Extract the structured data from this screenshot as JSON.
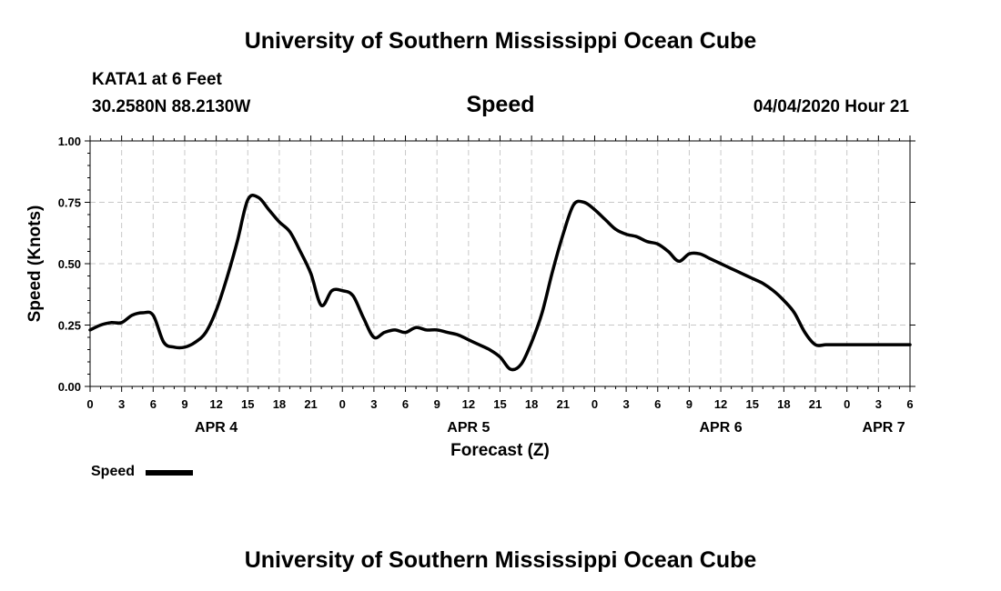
{
  "header": {
    "title": "University of Southern Mississippi Ocean Cube",
    "station": "KATA1 at 6 Feet",
    "coords": "30.2580N 88.2130W",
    "variable": "Speed",
    "timestamp": "04/04/2020 Hour 21"
  },
  "footer": {
    "title": "University of Southern Mississippi Ocean Cube"
  },
  "legend": {
    "label": "Speed",
    "color": "#000000"
  },
  "chart_data": {
    "type": "line",
    "title": "Speed",
    "xlabel": "Forecast (Z)",
    "ylabel": "Speed (Knots)",
    "ylim": [
      0,
      1.0
    ],
    "xlim": [
      0,
      78
    ],
    "yticks": [
      0.0,
      0.25,
      0.5,
      0.75,
      1.0
    ],
    "ytick_labels": [
      "0.00",
      "0.25",
      "0.50",
      "0.75",
      "1.00"
    ],
    "xticks": [
      0,
      3,
      6,
      9,
      12,
      15,
      18,
      21,
      24,
      27,
      30,
      33,
      36,
      39,
      42,
      45,
      48,
      51,
      54,
      57,
      60,
      63,
      66,
      69,
      72,
      75,
      78
    ],
    "xtick_labels": [
      "0",
      "3",
      "6",
      "9",
      "12",
      "15",
      "18",
      "21",
      "0",
      "3",
      "6",
      "9",
      "12",
      "15",
      "18",
      "21",
      "0",
      "3",
      "6",
      "9",
      "12",
      "15",
      "18",
      "21",
      "0",
      "3",
      "6"
    ],
    "date_labels": [
      {
        "text": "APR 4",
        "x": 12
      },
      {
        "text": "APR 5",
        "x": 36
      },
      {
        "text": "APR 6",
        "x": 60
      },
      {
        "text": "APR 7",
        "x": 75.5
      }
    ],
    "grid": true,
    "series": [
      {
        "name": "Speed",
        "x": [
          0,
          1,
          2,
          3,
          4,
          5,
          6,
          7,
          8,
          9,
          10,
          11,
          12,
          13,
          14,
          15,
          16,
          17,
          18,
          19,
          20,
          21,
          22,
          23,
          24,
          25,
          26,
          27,
          28,
          29,
          30,
          31,
          32,
          33,
          34,
          35,
          36,
          37,
          38,
          39,
          40,
          41,
          42,
          43,
          44,
          45,
          46,
          47,
          48,
          49,
          50,
          51,
          52,
          53,
          54,
          55,
          56,
          57,
          58,
          59,
          60,
          61,
          62,
          63,
          64,
          65,
          66,
          67,
          68,
          69,
          70,
          71,
          72,
          73,
          74,
          75,
          76,
          77,
          78
        ],
        "values": [
          0.23,
          0.25,
          0.26,
          0.26,
          0.29,
          0.3,
          0.29,
          0.18,
          0.16,
          0.16,
          0.18,
          0.22,
          0.31,
          0.44,
          0.59,
          0.76,
          0.77,
          0.72,
          0.67,
          0.63,
          0.55,
          0.46,
          0.33,
          0.39,
          0.39,
          0.37,
          0.28,
          0.2,
          0.22,
          0.23,
          0.22,
          0.24,
          0.23,
          0.23,
          0.22,
          0.21,
          0.19,
          0.17,
          0.15,
          0.12,
          0.07,
          0.09,
          0.18,
          0.3,
          0.47,
          0.62,
          0.74,
          0.75,
          0.72,
          0.68,
          0.64,
          0.62,
          0.61,
          0.59,
          0.58,
          0.55,
          0.51,
          0.54,
          0.54,
          0.52,
          0.5,
          0.48,
          0.46,
          0.44,
          0.42,
          0.39,
          0.35,
          0.3,
          0.22,
          0.17,
          0.17,
          0.17,
          0.17,
          0.17,
          0.17,
          0.17,
          0.17,
          0.17,
          0.17
        ]
      }
    ]
  }
}
